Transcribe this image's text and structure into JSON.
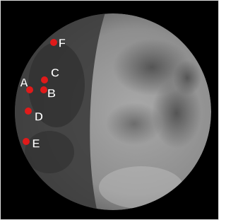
{
  "markers": [
    {
      "label": "F"
    },
    {
      "label": "C"
    },
    {
      "label": "A"
    },
    {
      "label": "B"
    },
    {
      "label": "D"
    },
    {
      "label": "E"
    }
  ]
}
